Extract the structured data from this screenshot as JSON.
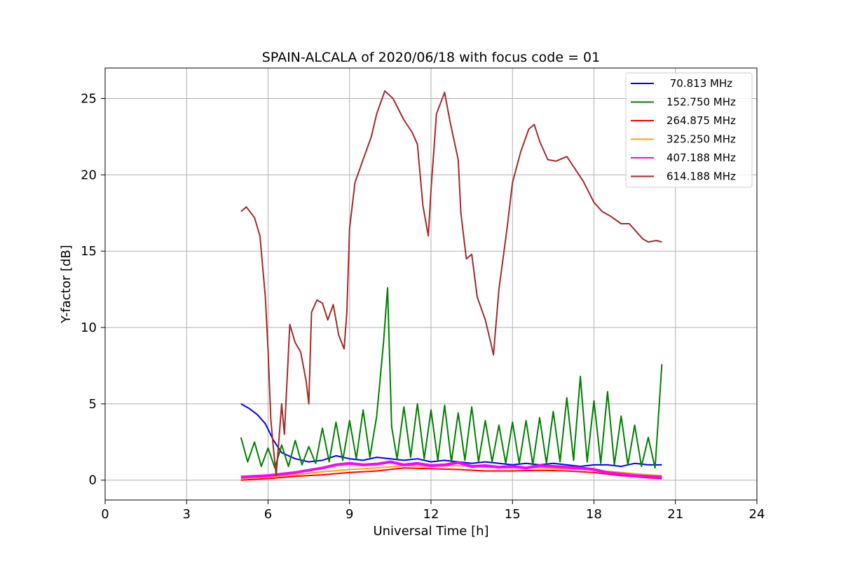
{
  "chart_data": {
    "type": "line",
    "title": "SPAIN-ALCALA of 2020/06/18 with focus code = 01",
    "xlabel": "Universal Time [h]",
    "ylabel": "Y-factor [dB]",
    "xlim": [
      0,
      24
    ],
    "ylim": [
      -1.3,
      27
    ],
    "xticks": [
      0,
      3,
      6,
      9,
      12,
      15,
      18,
      21,
      24
    ],
    "yticks": [
      0,
      5,
      10,
      15,
      20,
      25
    ],
    "grid": true,
    "legend_position": "top-right",
    "series": [
      {
        "name": " 70.813 MHz",
        "color": "#0000ff",
        "x": [
          5.0,
          5.3,
          5.6,
          5.9,
          6.2,
          6.5,
          7.0,
          7.5,
          8.0,
          8.5,
          9.0,
          9.5,
          10.0,
          10.5,
          11.0,
          11.5,
          12.0,
          12.5,
          13.0,
          13.5,
          14.0,
          14.5,
          15.0,
          15.5,
          16.0,
          16.5,
          17.0,
          17.5,
          18.0,
          18.5,
          19.0,
          19.5,
          20.0,
          20.5
        ],
        "values": [
          5.0,
          4.7,
          4.3,
          3.7,
          2.6,
          1.8,
          1.4,
          1.2,
          1.3,
          1.6,
          1.4,
          1.3,
          1.5,
          1.4,
          1.3,
          1.4,
          1.2,
          1.3,
          1.2,
          1.1,
          1.2,
          1.1,
          1.0,
          1.1,
          1.0,
          1.1,
          1.0,
          0.9,
          1.0,
          1.0,
          0.9,
          1.1,
          1.0,
          1.0
        ]
      },
      {
        "name": "152.750 MHz",
        "color": "#008000",
        "x": [
          5.0,
          5.25,
          5.5,
          5.75,
          6.0,
          6.25,
          6.5,
          6.75,
          7.0,
          7.25,
          7.5,
          7.75,
          8.0,
          8.25,
          8.5,
          8.75,
          9.0,
          9.25,
          9.5,
          9.75,
          10.0,
          10.25,
          10.4,
          10.55,
          10.75,
          11.0,
          11.25,
          11.5,
          11.75,
          12.0,
          12.25,
          12.5,
          12.75,
          13.0,
          13.25,
          13.5,
          13.75,
          14.0,
          14.25,
          14.5,
          14.75,
          15.0,
          15.25,
          15.5,
          15.75,
          16.0,
          16.25,
          16.5,
          16.75,
          17.0,
          17.25,
          17.5,
          17.75,
          18.0,
          18.25,
          18.5,
          18.75,
          19.0,
          19.25,
          19.5,
          19.75,
          20.0,
          20.25,
          20.5
        ],
        "values": [
          2.8,
          1.2,
          2.5,
          0.9,
          2.1,
          0.8,
          2.3,
          0.9,
          2.6,
          1.0,
          2.2,
          1.1,
          3.4,
          1.2,
          3.8,
          1.3,
          3.9,
          1.4,
          4.6,
          1.5,
          4.2,
          9.0,
          12.6,
          3.5,
          1.4,
          4.8,
          1.5,
          5.0,
          1.4,
          4.6,
          1.3,
          4.9,
          1.2,
          4.4,
          1.3,
          4.8,
          1.2,
          3.9,
          1.2,
          3.6,
          1.1,
          3.8,
          1.1,
          3.9,
          1.0,
          4.1,
          1.1,
          4.5,
          1.2,
          5.4,
          1.3,
          6.8,
          1.2,
          5.2,
          1.1,
          5.8,
          1.0,
          4.2,
          1.0,
          3.6,
          0.9,
          2.8,
          0.8,
          7.6
        ]
      },
      {
        "name": "264.875 MHz",
        "color": "#ff0000",
        "x": [
          5.0,
          6.0,
          7.0,
          8.0,
          9.0,
          10.0,
          11.0,
          12.0,
          13.0,
          14.0,
          15.0,
          16.0,
          17.0,
          18.0,
          19.0,
          20.0,
          20.5
        ],
        "values": [
          0.0,
          0.1,
          0.25,
          0.35,
          0.5,
          0.6,
          0.8,
          0.75,
          0.7,
          0.6,
          0.6,
          0.65,
          0.6,
          0.5,
          0.3,
          0.15,
          0.1
        ]
      },
      {
        "name": "325.250 MHz",
        "color": "#ffa500",
        "x": [
          5.0,
          6.0,
          7.0,
          8.0,
          9.0,
          10.0,
          11.0,
          12.0,
          13.0,
          14.0,
          15.0,
          16.0,
          17.0,
          18.0,
          19.0,
          20.0,
          20.5
        ],
        "values": [
          0.1,
          0.2,
          0.35,
          0.55,
          0.7,
          0.8,
          0.95,
          0.9,
          0.95,
          0.85,
          0.8,
          0.8,
          0.75,
          0.65,
          0.5,
          0.35,
          0.3
        ]
      },
      {
        "name": "407.188 MHz",
        "color": "#ff00ff",
        "x": [
          5.0,
          6.0,
          7.0,
          8.0,
          8.5,
          9.0,
          9.5,
          10.0,
          10.5,
          11.0,
          11.5,
          12.0,
          12.5,
          13.0,
          13.5,
          14.0,
          14.5,
          15.0,
          15.5,
          16.0,
          16.5,
          17.0,
          17.5,
          18.0,
          18.5,
          19.0,
          19.5,
          20.0,
          20.5
        ],
        "values": [
          0.2,
          0.3,
          0.5,
          0.8,
          1.0,
          1.1,
          1.0,
          1.05,
          1.2,
          1.0,
          1.1,
          0.95,
          1.0,
          1.15,
          0.9,
          0.95,
          0.85,
          0.9,
          0.8,
          0.95,
          0.9,
          0.85,
          0.8,
          0.7,
          0.5,
          0.4,
          0.3,
          0.25,
          0.2
        ]
      },
      {
        "name": "614.188 MHz",
        "color": "#a52a2a",
        "x": [
          5.0,
          5.2,
          5.5,
          5.7,
          5.9,
          6.0,
          6.1,
          6.2,
          6.3,
          6.5,
          6.6,
          6.8,
          7.0,
          7.2,
          7.4,
          7.5,
          7.6,
          7.8,
          8.0,
          8.2,
          8.4,
          8.6,
          8.8,
          8.9,
          9.0,
          9.2,
          9.5,
          9.8,
          10.0,
          10.3,
          10.6,
          11.0,
          11.3,
          11.5,
          11.7,
          11.9,
          12.0,
          12.2,
          12.5,
          12.7,
          13.0,
          13.1,
          13.3,
          13.5,
          13.7,
          14.0,
          14.2,
          14.3,
          14.5,
          14.8,
          15.0,
          15.3,
          15.6,
          15.8,
          16.0,
          16.3,
          16.6,
          17.0,
          17.3,
          17.6,
          18.0,
          18.3,
          18.6,
          19.0,
          19.3,
          19.6,
          19.8,
          20.0,
          20.3,
          20.5
        ],
        "values": [
          17.6,
          17.9,
          17.2,
          16.0,
          12.0,
          8.5,
          4.0,
          2.0,
          0.3,
          5.0,
          3.0,
          10.2,
          9.0,
          8.4,
          6.5,
          5.0,
          11.0,
          11.8,
          11.6,
          10.5,
          11.5,
          9.5,
          8.6,
          11.0,
          16.5,
          19.5,
          21.0,
          22.5,
          24.0,
          25.5,
          25.0,
          23.6,
          22.8,
          22.0,
          18.0,
          16.0,
          19.0,
          24.0,
          25.4,
          23.5,
          21.0,
          17.5,
          14.5,
          14.8,
          12.0,
          10.5,
          9.0,
          8.2,
          12.5,
          16.5,
          19.5,
          21.5,
          23.0,
          23.3,
          22.2,
          21.0,
          20.9,
          21.2,
          20.4,
          19.6,
          18.2,
          17.6,
          17.3,
          16.8,
          16.8,
          16.2,
          15.8,
          15.6,
          15.7,
          15.6
        ]
      }
    ]
  }
}
